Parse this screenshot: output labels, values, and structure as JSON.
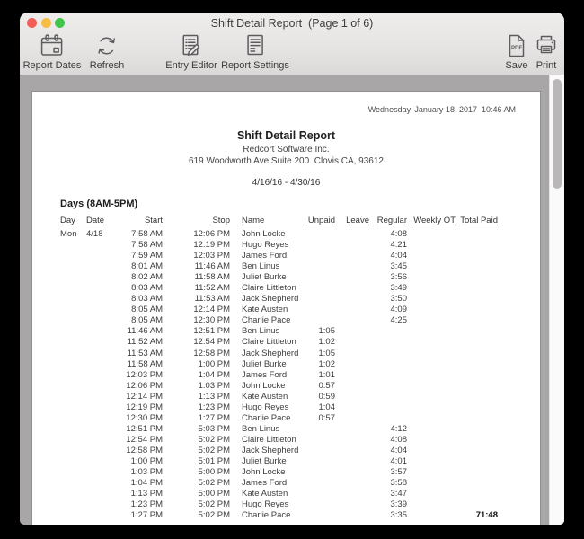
{
  "window": {
    "title": "Shift Detail Report  (Page 1 of 6)",
    "traffic_lights": [
      "close",
      "minimize",
      "zoom"
    ],
    "toolbar": [
      {
        "label": "Report Dates",
        "icon": "calendar-icon"
      },
      {
        "label": "Refresh",
        "icon": "refresh-icon"
      },
      {
        "label": "Entry Editor",
        "icon": "entry-editor-icon"
      },
      {
        "label": "Report Settings",
        "icon": "report-settings-icon"
      },
      {
        "label": "Save",
        "icon": "pdf-file-icon",
        "badge": "PDF"
      },
      {
        "label": "Print",
        "icon": "printer-icon"
      }
    ]
  },
  "report": {
    "generated_at": "Wednesday, January 18, 2017  10:46 AM",
    "title": "Shift Detail Report",
    "company": "Redcort Software Inc.",
    "address": "619 Woodworth Ave Suite 200  Clovis CA, 93612",
    "period": "4/16/16 - 4/30/16",
    "section_heading": "Days (8AM-5PM)",
    "columns": [
      "Day",
      "Date",
      "Start",
      "Stop",
      "Name",
      "Unpaid",
      "Leave",
      "Regular",
      "Weekly OT",
      "Total Paid"
    ],
    "column_keys": [
      "day",
      "date",
      "start",
      "stop",
      "name",
      "unpaid",
      "leave",
      "regular",
      "weekly-ot",
      "total-paid"
    ],
    "rows": [
      [
        "Mon",
        "4/18",
        "7:58 AM",
        "12:06 PM",
        "John Locke",
        "",
        "",
        "4:08",
        "",
        ""
      ],
      [
        "",
        "",
        "7:58 AM",
        "12:19 PM",
        "Hugo Reyes",
        "",
        "",
        "4:21",
        "",
        ""
      ],
      [
        "",
        "",
        "7:59 AM",
        "12:03 PM",
        "James Ford",
        "",
        "",
        "4:04",
        "",
        ""
      ],
      [
        "",
        "",
        "8:01 AM",
        "11:46 AM",
        "Ben Linus",
        "",
        "",
        "3:45",
        "",
        ""
      ],
      [
        "",
        "",
        "8:02 AM",
        "11:58 AM",
        "Juliet Burke",
        "",
        "",
        "3:56",
        "",
        ""
      ],
      [
        "",
        "",
        "8:03 AM",
        "11:52 AM",
        "Claire Littleton",
        "",
        "",
        "3:49",
        "",
        ""
      ],
      [
        "",
        "",
        "8:03 AM",
        "11:53 AM",
        "Jack Shepherd",
        "",
        "",
        "3:50",
        "",
        ""
      ],
      [
        "",
        "",
        "8:05 AM",
        "12:14 PM",
        "Kate Austen",
        "",
        "",
        "4:09",
        "",
        ""
      ],
      [
        "",
        "",
        "8:05 AM",
        "12:30 PM",
        "Charlie Pace",
        "",
        "",
        "4:25",
        "",
        ""
      ],
      [
        "",
        "",
        "11:46 AM",
        "12:51 PM",
        "Ben Linus",
        "1:05",
        "",
        "",
        "",
        ""
      ],
      [
        "",
        "",
        "11:52 AM",
        "12:54 PM",
        "Claire Littleton",
        "1:02",
        "",
        "",
        "",
        ""
      ],
      [
        "",
        "",
        "11:53 AM",
        "12:58 PM",
        "Jack Shepherd",
        "1:05",
        "",
        "",
        "",
        ""
      ],
      [
        "",
        "",
        "11:58 AM",
        "1:00 PM",
        "Juliet Burke",
        "1:02",
        "",
        "",
        "",
        ""
      ],
      [
        "",
        "",
        "12:03 PM",
        "1:04 PM",
        "James Ford",
        "1:01",
        "",
        "",
        "",
        ""
      ],
      [
        "",
        "",
        "12:06 PM",
        "1:03 PM",
        "John Locke",
        "0:57",
        "",
        "",
        "",
        ""
      ],
      [
        "",
        "",
        "12:14 PM",
        "1:13 PM",
        "Kate Austen",
        "0:59",
        "",
        "",
        "",
        ""
      ],
      [
        "",
        "",
        "12:19 PM",
        "1:23 PM",
        "Hugo Reyes",
        "1:04",
        "",
        "",
        "",
        ""
      ],
      [
        "",
        "",
        "12:30 PM",
        "1:27 PM",
        "Charlie Pace",
        "0:57",
        "",
        "",
        "",
        ""
      ],
      [
        "",
        "",
        "12:51 PM",
        "5:03 PM",
        "Ben Linus",
        "",
        "",
        "4:12",
        "",
        ""
      ],
      [
        "",
        "",
        "12:54 PM",
        "5:02 PM",
        "Claire Littleton",
        "",
        "",
        "4:08",
        "",
        ""
      ],
      [
        "",
        "",
        "12:58 PM",
        "5:02 PM",
        "Jack Shepherd",
        "",
        "",
        "4:04",
        "",
        ""
      ],
      [
        "",
        "",
        "1:00 PM",
        "5:01 PM",
        "Juliet Burke",
        "",
        "",
        "4:01",
        "",
        ""
      ],
      [
        "",
        "",
        "1:03 PM",
        "5:00 PM",
        "John Locke",
        "",
        "",
        "3:57",
        "",
        ""
      ],
      [
        "",
        "",
        "1:04 PM",
        "5:02 PM",
        "James Ford",
        "",
        "",
        "3:58",
        "",
        ""
      ],
      [
        "",
        "",
        "1:13 PM",
        "5:00 PM",
        "Kate Austen",
        "",
        "",
        "3:47",
        "",
        ""
      ],
      [
        "",
        "",
        "1:23 PM",
        "5:02 PM",
        "Hugo Reyes",
        "",
        "",
        "3:39",
        "",
        ""
      ],
      [
        "",
        "",
        "1:27 PM",
        "5:02 PM",
        "Charlie Pace",
        "",
        "",
        "3:35",
        "",
        "71:48"
      ]
    ]
  },
  "colors": {
    "traffic_red": "#f35f57",
    "traffic_yellow": "#f8bd45",
    "traffic_green": "#3ec74b",
    "chrome": "#e9e7e6",
    "viewer_background": "#a8a6a6",
    "page": "#ffffff",
    "icon": "#5c5c5e"
  }
}
